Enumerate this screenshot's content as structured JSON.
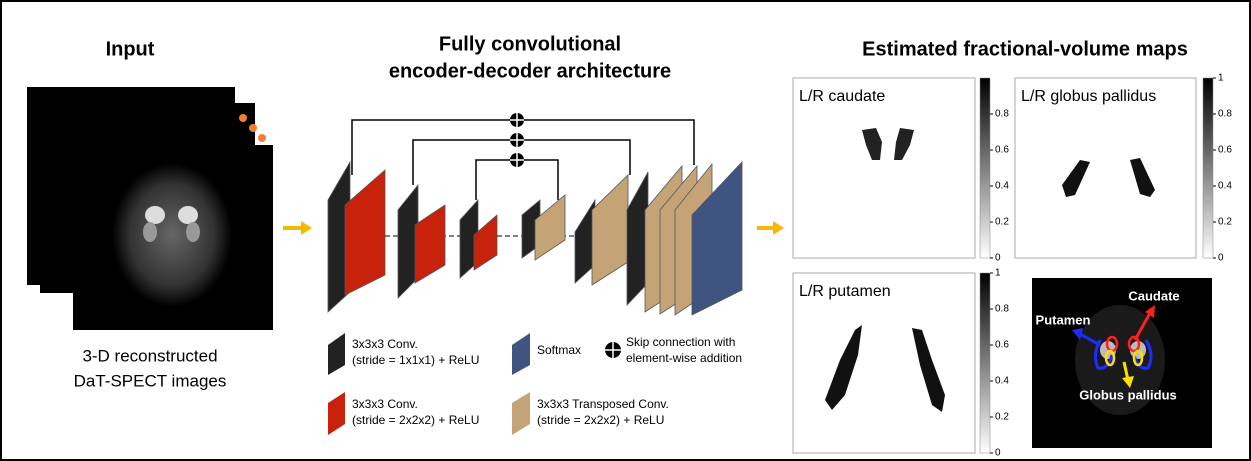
{
  "input": {
    "title": "Input",
    "caption": [
      "3-D reconstructed",
      "DaT-SPECT images"
    ]
  },
  "architecture": {
    "title": [
      "Fully convolutional",
      "encoder-decoder architecture"
    ],
    "legend": [
      {
        "label": [
          "3x3x3 Conv.",
          "(stride = 1x1x1) + ReLU"
        ]
      },
      {
        "label": [
          "Softmax"
        ]
      },
      {
        "label": [
          "Skip connection with",
          "element-wise addition"
        ]
      },
      {
        "label": [
          "3x3x3 Conv.",
          "(stride = 2x2x2) + ReLU"
        ]
      },
      {
        "label": [
          "3x3x3 Transposed Conv.",
          "(stride = 2x2x2) + ReLU"
        ]
      }
    ]
  },
  "maps": {
    "title": "Estimated fractional-volume maps",
    "panels": [
      {
        "label": "L/R caudate",
        "colorbar_ticks": [
          0.8,
          0.6,
          0.4,
          0.2,
          0
        ]
      },
      {
        "label": "L/R globus pallidus",
        "colorbar_ticks": [
          1,
          0.8,
          0.6,
          0.4,
          0.2,
          0
        ]
      },
      {
        "label": "L/R putamen",
        "colorbar_ticks": [
          1,
          0.8,
          0.6,
          0.4,
          0.2,
          0
        ]
      }
    ],
    "overlay": {
      "labels": [
        "Caudate",
        "Putamen",
        "Globus pallidus"
      ]
    }
  }
}
